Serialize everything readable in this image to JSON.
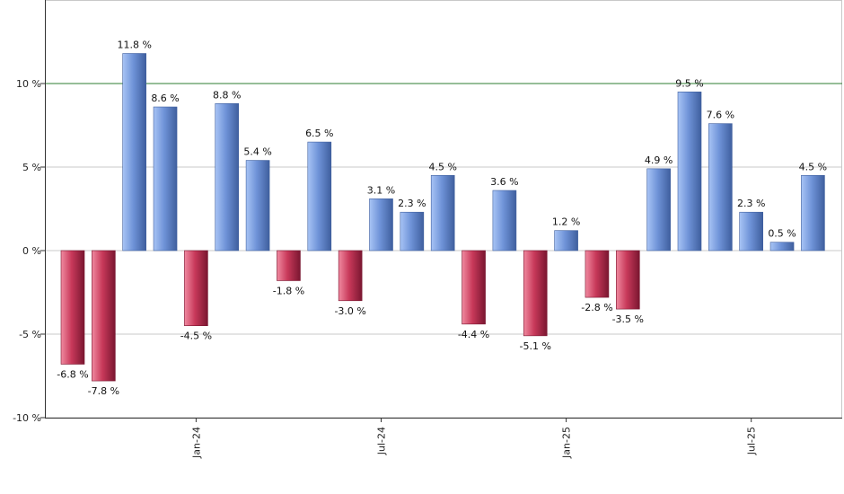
{
  "chart_data": {
    "type": "bar",
    "title": "",
    "xlabel": "",
    "ylabel": "",
    "ylim": [
      -10,
      15
    ],
    "y_ticks": [
      {
        "value": -10,
        "label": "-10 %"
      },
      {
        "value": -5,
        "label": "-5 %"
      },
      {
        "value": 0,
        "label": "0 %"
      },
      {
        "value": 5,
        "label": "5 %"
      },
      {
        "value": 10,
        "label": "10 %"
      }
    ],
    "x_ticks": [
      {
        "index": 4,
        "label": "Jan-24"
      },
      {
        "index": 10,
        "label": "Jul-24"
      },
      {
        "index": 16,
        "label": "Jan-25"
      },
      {
        "index": 22,
        "label": "Jul-25"
      }
    ],
    "reference_line": {
      "value": 10,
      "color": "#2e7d32"
    },
    "grid": true,
    "values": [
      -6.8,
      -7.8,
      11.8,
      8.6,
      -4.5,
      8.8,
      5.4,
      -1.8,
      6.5,
      -3.0,
      3.1,
      2.3,
      4.5,
      -4.4,
      3.6,
      -5.1,
      1.2,
      -2.8,
      -3.5,
      4.9,
      9.5,
      7.6,
      2.3,
      0.5,
      4.5
    ],
    "value_labels": [
      "-6.8 %",
      "-7.8 %",
      "11.8 %",
      "8.6 %",
      "-4.5 %",
      "8.8 %",
      "5.4 %",
      "-1.8 %",
      "6.5 %",
      "-3.0 %",
      "3.1 %",
      "2.3 %",
      "4.5 %",
      "-4.4 %",
      "3.6 %",
      "-5.1 %",
      "1.2 %",
      "-2.8 %",
      "-3.5 %",
      "4.9 %",
      "9.5 %",
      "7.6 %",
      "2.3 %",
      "0.5 %",
      "4.5 %"
    ],
    "colors": {
      "positive_light": "#a8c4f5",
      "positive_mid": "#6f93d8",
      "positive_dark": "#3f5f9e",
      "negative_light": "#f08aa0",
      "negative_mid": "#c8395a",
      "negative_dark": "#7a1630",
      "grid": "#c8c8c8",
      "axis": "#333333"
    }
  }
}
